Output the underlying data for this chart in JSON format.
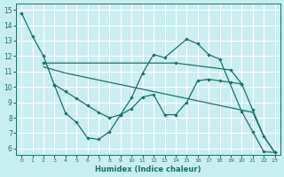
{
  "xlabel": "Humidex (Indice chaleur)",
  "bg_color": "#c8eef0",
  "grid_color": "#ffffff",
  "line_color": "#1a7068",
  "xlim_min": -0.5,
  "xlim_max": 23.5,
  "ylim_min": 5.6,
  "ylim_max": 15.4,
  "xticks": [
    0,
    1,
    2,
    3,
    4,
    5,
    6,
    7,
    8,
    9,
    10,
    11,
    12,
    13,
    14,
    15,
    16,
    17,
    18,
    19,
    20,
    21,
    22,
    23
  ],
  "yticks": [
    6,
    7,
    8,
    9,
    10,
    11,
    12,
    13,
    14,
    15
  ],
  "line1_x": [
    0,
    1,
    2,
    3,
    4,
    5,
    6,
    7,
    8,
    9,
    10,
    11,
    12,
    13,
    15,
    16,
    17,
    18,
    20,
    21,
    22,
    23
  ],
  "line1_y": [
    14.8,
    13.3,
    12.0,
    10.1,
    8.3,
    7.7,
    6.7,
    6.6,
    7.1,
    8.2,
    9.3,
    10.9,
    12.1,
    11.9,
    13.1,
    12.8,
    12.1,
    11.8,
    8.4,
    7.1,
    5.8,
    5.75
  ],
  "line2_x": [
    2,
    14,
    19,
    20,
    21,
    22,
    23
  ],
  "line2_y": [
    11.55,
    11.55,
    11.1,
    10.2,
    8.5,
    6.8,
    5.75
  ],
  "line3_x": [
    2,
    3,
    4,
    5,
    6,
    7,
    8,
    9,
    10,
    11,
    12,
    13,
    14,
    15,
    16,
    17,
    18,
    19,
    20,
    21,
    22,
    23
  ],
  "line3_y": [
    11.3,
    11.1,
    10.9,
    10.75,
    10.6,
    10.45,
    10.3,
    10.15,
    10.0,
    9.85,
    9.7,
    9.55,
    9.4,
    9.25,
    9.1,
    8.95,
    8.8,
    8.65,
    8.5,
    8.35,
    6.8,
    5.75
  ],
  "line4_x": [
    3,
    4,
    5,
    6,
    7,
    8,
    9,
    10,
    11,
    12,
    13,
    14,
    15,
    16,
    17,
    18,
    19,
    20
  ],
  "line4_y": [
    10.15,
    9.7,
    9.25,
    8.8,
    8.35,
    8.0,
    8.2,
    8.6,
    9.35,
    9.5,
    8.2,
    8.2,
    9.0,
    10.4,
    10.5,
    10.4,
    10.3,
    10.2
  ]
}
